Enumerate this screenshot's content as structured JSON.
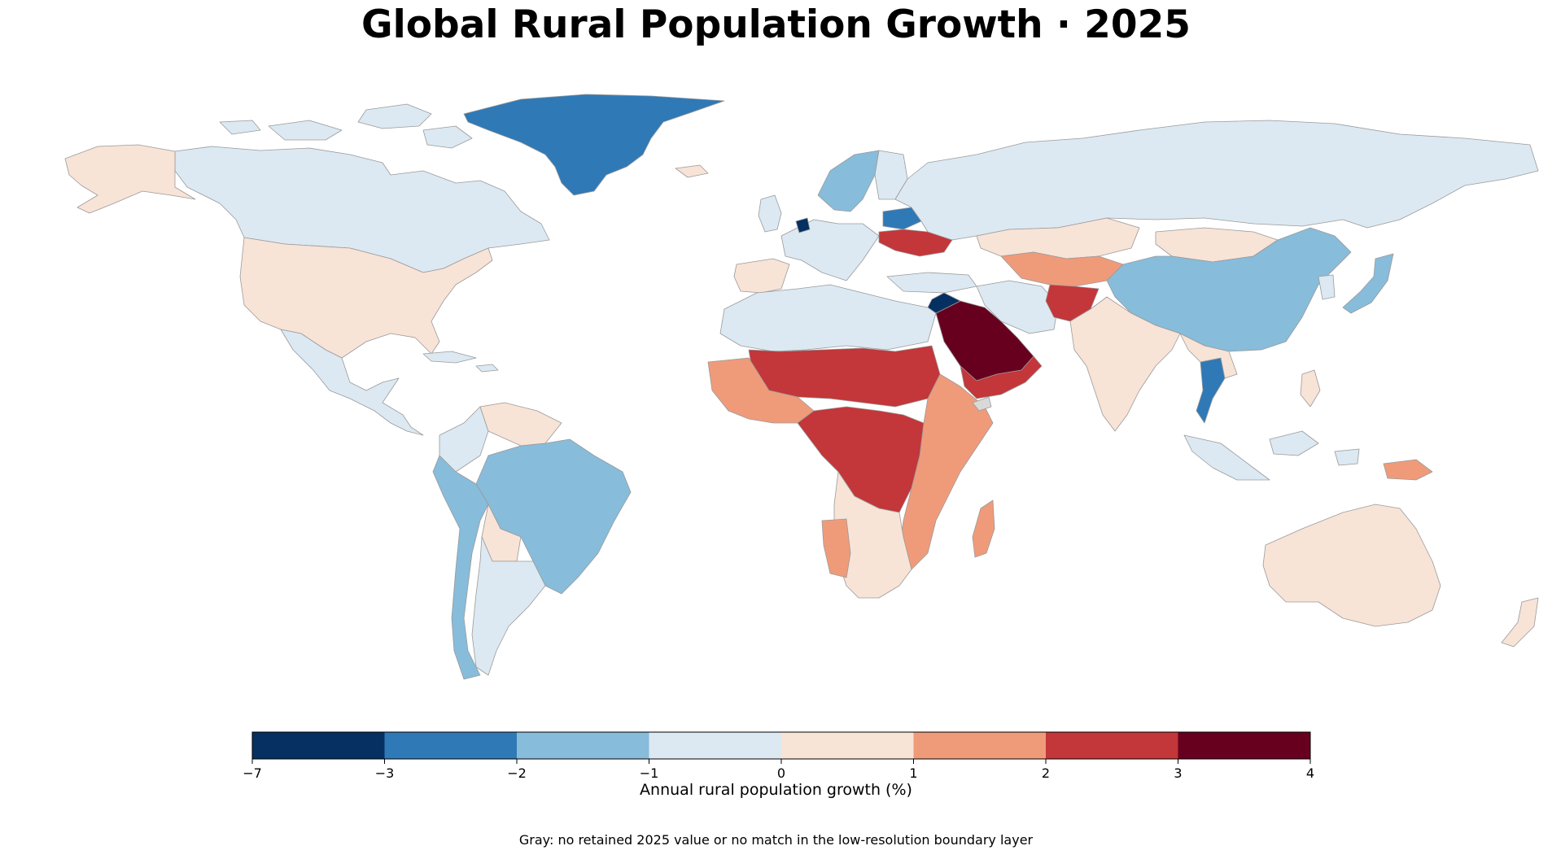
{
  "title": "Global Rural Population Growth · 2025",
  "colorbar": {
    "label": "Annual rural population growth (%)",
    "ticks": [
      "−7",
      "−3",
      "−2",
      "−1",
      "0",
      "1",
      "2",
      "3",
      "4"
    ],
    "bins": [
      {
        "from": -7,
        "to": -3,
        "color": "#053061"
      },
      {
        "from": -3,
        "to": -2,
        "color": "#2f79b6"
      },
      {
        "from": -2,
        "to": -1,
        "color": "#87bcdb"
      },
      {
        "from": -1,
        "to": 0,
        "color": "#dce9f2"
      },
      {
        "from": 0,
        "to": 1,
        "color": "#f8e3d7"
      },
      {
        "from": 1,
        "to": 2,
        "color": "#ef9b7a"
      },
      {
        "from": 2,
        "to": 3,
        "color": "#c33639"
      },
      {
        "from": 3,
        "to": 4,
        "color": "#67001f"
      }
    ]
  },
  "missing_color": "#d9d9d9",
  "note": "Gray: no retained 2025 value or no match in the low-resolution boundary layer",
  "chart_data": {
    "type": "choropleth",
    "value_range": [
      -7,
      4
    ],
    "regions": [
      {
        "name": "Greenland",
        "bin": "-3 to -2"
      },
      {
        "name": "Canada",
        "bin": "-1 to 0"
      },
      {
        "name": "Alaska (USA)",
        "bin": "0 to 1"
      },
      {
        "name": "USA",
        "bin": "0 to 1"
      },
      {
        "name": "Mexico",
        "bin": "-1 to 0"
      },
      {
        "name": "Central America",
        "bin": "-1 to 0"
      },
      {
        "name": "Brazil",
        "bin": "-2 to -1"
      },
      {
        "name": "Peru",
        "bin": "-2 to -1"
      },
      {
        "name": "Chile",
        "bin": "-2 to -1"
      },
      {
        "name": "Colombia",
        "bin": "-1 to 0"
      },
      {
        "name": "Venezuela",
        "bin": "0 to 1"
      },
      {
        "name": "Bolivia",
        "bin": "0 to 1"
      },
      {
        "name": "Argentina",
        "bin": "-1 to 0"
      },
      {
        "name": "Russia",
        "bin": "-1 to 0"
      },
      {
        "name": "Scandinavia",
        "bin": "-2 to -1"
      },
      {
        "name": "Netherlands",
        "bin": "-7 to -3"
      },
      {
        "name": "Belarus",
        "bin": "-3 to -2"
      },
      {
        "name": "Ukraine",
        "bin": "2 to 3"
      },
      {
        "name": "Iberia",
        "bin": "0 to 1"
      },
      {
        "name": "Kazakhstan",
        "bin": "0 to 1"
      },
      {
        "name": "Central Asia",
        "bin": "1 to 2"
      },
      {
        "name": "Afghanistan",
        "bin": "2 to 3"
      },
      {
        "name": "Iran",
        "bin": "-1 to 0"
      },
      {
        "name": "Saudi Arabia",
        "bin": "3 to 4"
      },
      {
        "name": "Yemen / Oman",
        "bin": "2 to 3"
      },
      {
        "name": "India",
        "bin": "0 to 1"
      },
      {
        "name": "China",
        "bin": "-2 to -1"
      },
      {
        "name": "Mongolia",
        "bin": "0 to 1"
      },
      {
        "name": "Japan",
        "bin": "-2 to -1"
      },
      {
        "name": "Thailand",
        "bin": "-3 to -2"
      },
      {
        "name": "Indonesia",
        "bin": "-1 to 0"
      },
      {
        "name": "Papua New Guinea",
        "bin": "1 to 2"
      },
      {
        "name": "Australia",
        "bin": "0 to 1"
      },
      {
        "name": "New Zealand",
        "bin": "0 to 1"
      },
      {
        "name": "North Africa",
        "bin": "-1 to 0"
      },
      {
        "name": "Sahel",
        "bin": "2 to 3"
      },
      {
        "name": "Central Africa",
        "bin": "2 to 3"
      },
      {
        "name": "East Africa",
        "bin": "1 to 2"
      },
      {
        "name": "Southern Africa",
        "bin": "0 to 1"
      },
      {
        "name": "Madagascar",
        "bin": "1 to 2"
      },
      {
        "name": "Somaliland area",
        "bin": "no data"
      }
    ]
  }
}
